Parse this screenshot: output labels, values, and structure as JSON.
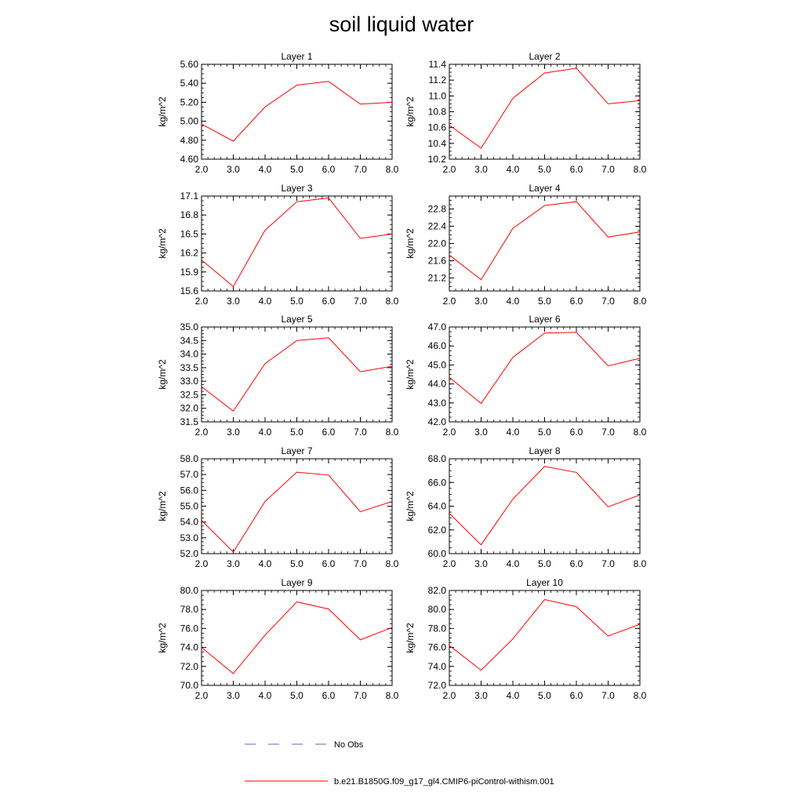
{
  "figure": {
    "title": "soil liquid water"
  },
  "legend": {
    "obs_label": "No Obs",
    "model_label": "b.e21.B1850G.f09_g17_gl4.CMIP6-piControl-withism.001",
    "obs_color": "#6666bb",
    "model_color": "#ff0000"
  },
  "chart_data": [
    {
      "type": "line",
      "title": "Layer 1",
      "ylabel": "kg/m^2",
      "xlim": [
        2,
        8
      ],
      "ylim": [
        4.6,
        5.6
      ],
      "xticks": [
        "2.0",
        "3.0",
        "4.0",
        "5.0",
        "6.0",
        "7.0",
        "8.0"
      ],
      "yticks": [
        "4.60",
        "4.80",
        "5.00",
        "5.20",
        "5.40",
        "5.60"
      ],
      "series": [
        {
          "x": [
            2,
            3,
            4,
            5,
            6,
            7,
            8
          ],
          "y": [
            4.97,
            4.79,
            5.15,
            5.38,
            5.42,
            5.18,
            5.2
          ]
        }
      ]
    },
    {
      "type": "line",
      "title": "Layer 2",
      "ylabel": "kg/m^2",
      "xlim": [
        2,
        8
      ],
      "ylim": [
        10.2,
        11.4
      ],
      "xticks": [
        "2.0",
        "3.0",
        "4.0",
        "5.0",
        "6.0",
        "7.0",
        "8.0"
      ],
      "yticks": [
        "10.2",
        "10.4",
        "10.6",
        "10.8",
        "11.0",
        "11.2",
        "11.4"
      ],
      "series": [
        {
          "x": [
            2,
            3,
            4,
            5,
            6,
            7,
            8
          ],
          "y": [
            10.63,
            10.34,
            10.97,
            11.29,
            11.35,
            10.9,
            10.94
          ]
        }
      ]
    },
    {
      "type": "line",
      "title": "Layer 3",
      "ylabel": "kg/m^2",
      "xlim": [
        2,
        8
      ],
      "ylim": [
        15.6,
        17.1
      ],
      "xticks": [
        "2.0",
        "3.0",
        "4.0",
        "5.0",
        "6.0",
        "7.0",
        "8.0"
      ],
      "yticks": [
        "15.6",
        "15.9",
        "16.2",
        "16.5",
        "16.8",
        "17.1"
      ],
      "series": [
        {
          "x": [
            2,
            3,
            4,
            5,
            6,
            7,
            8
          ],
          "y": [
            16.09,
            15.67,
            16.56,
            17.01,
            17.07,
            16.43,
            16.5
          ]
        }
      ]
    },
    {
      "type": "line",
      "title": "Layer 4",
      "ylabel": "kg/m^2",
      "xlim": [
        2,
        8
      ],
      "ylim": [
        20.9,
        23.1
      ],
      "xticks": [
        "2.0",
        "3.0",
        "4.0",
        "5.0",
        "6.0",
        "7.0",
        "8.0"
      ],
      "yticks": [
        "21.2",
        "21.6",
        "22.0",
        "22.4",
        "22.8"
      ],
      "series": [
        {
          "x": [
            2,
            3,
            4,
            5,
            6,
            7,
            8
          ],
          "y": [
            21.73,
            21.16,
            22.35,
            22.88,
            22.97,
            22.15,
            22.27
          ]
        }
      ]
    },
    {
      "type": "line",
      "title": "Layer 5",
      "ylabel": "kg/m^2",
      "xlim": [
        2,
        8
      ],
      "ylim": [
        31.5,
        35.0
      ],
      "xticks": [
        "2.0",
        "3.0",
        "4.0",
        "5.0",
        "6.0",
        "7.0",
        "8.0"
      ],
      "yticks": [
        "31.5",
        "32.0",
        "32.5",
        "33.0",
        "33.5",
        "34.0",
        "34.5",
        "35.0"
      ],
      "series": [
        {
          "x": [
            2,
            3,
            4,
            5,
            6,
            7,
            8
          ],
          "y": [
            32.8,
            31.9,
            33.65,
            34.5,
            34.6,
            33.35,
            33.55
          ]
        }
      ]
    },
    {
      "type": "line",
      "title": "Layer 6",
      "ylabel": "kg/m^2",
      "xlim": [
        2,
        8
      ],
      "ylim": [
        42.0,
        47.0
      ],
      "xticks": [
        "2.0",
        "3.0",
        "4.0",
        "5.0",
        "6.0",
        "7.0",
        "8.0"
      ],
      "yticks": [
        "42.0",
        "43.0",
        "44.0",
        "45.0",
        "46.0",
        "47.0"
      ],
      "series": [
        {
          "x": [
            2,
            3,
            4,
            5,
            6,
            7,
            8
          ],
          "y": [
            44.35,
            42.97,
            45.4,
            46.68,
            46.72,
            44.95,
            45.35
          ]
        }
      ]
    },
    {
      "type": "line",
      "title": "Layer 7",
      "ylabel": "kg/m^2",
      "xlim": [
        2,
        8
      ],
      "ylim": [
        52.0,
        58.0
      ],
      "xticks": [
        "2.0",
        "3.0",
        "4.0",
        "5.0",
        "6.0",
        "7.0",
        "8.0"
      ],
      "yticks": [
        "52.0",
        "53.0",
        "54.0",
        "55.0",
        "56.0",
        "57.0",
        "58.0"
      ],
      "series": [
        {
          "x": [
            2,
            3,
            4,
            5,
            6,
            7,
            8
          ],
          "y": [
            54.1,
            52.1,
            55.3,
            57.15,
            56.97,
            54.65,
            55.3
          ]
        }
      ]
    },
    {
      "type": "line",
      "title": "Layer 8",
      "ylabel": "kg/m^2",
      "xlim": [
        2,
        8
      ],
      "ylim": [
        60.0,
        68.0
      ],
      "xticks": [
        "2.0",
        "3.0",
        "4.0",
        "5.0",
        "6.0",
        "7.0",
        "8.0"
      ],
      "yticks": [
        "60.0",
        "62.0",
        "64.0",
        "66.0",
        "68.0"
      ],
      "series": [
        {
          "x": [
            2,
            3,
            4,
            5,
            6,
            7,
            8
          ],
          "y": [
            63.4,
            60.75,
            64.6,
            67.35,
            66.85,
            63.95,
            64.95
          ]
        }
      ]
    },
    {
      "type": "line",
      "title": "Layer 9",
      "ylabel": "kg/m^2",
      "xlim": [
        2,
        8
      ],
      "ylim": [
        70.0,
        80.0
      ],
      "xticks": [
        "2.0",
        "3.0",
        "4.0",
        "5.0",
        "6.0",
        "7.0",
        "8.0"
      ],
      "yticks": [
        "70.0",
        "72.0",
        "74.0",
        "76.0",
        "78.0",
        "80.0"
      ],
      "series": [
        {
          "x": [
            2,
            3,
            4,
            5,
            6,
            7,
            8
          ],
          "y": [
            74.0,
            71.25,
            75.3,
            78.8,
            78.05,
            74.8,
            76.1
          ]
        }
      ]
    },
    {
      "type": "line",
      "title": "Layer 10",
      "ylabel": "kg/m^2",
      "xlim": [
        2,
        8
      ],
      "ylim": [
        72.0,
        82.0
      ],
      "xticks": [
        "2.0",
        "3.0",
        "4.0",
        "5.0",
        "6.0",
        "7.0",
        "8.0"
      ],
      "yticks": [
        "72.0",
        "74.0",
        "76.0",
        "78.0",
        "80.0",
        "82.0"
      ],
      "series": [
        {
          "x": [
            2,
            3,
            4,
            5,
            6,
            7,
            8
          ],
          "y": [
            76.2,
            73.6,
            76.9,
            81.05,
            80.3,
            77.2,
            78.45
          ]
        }
      ]
    }
  ]
}
